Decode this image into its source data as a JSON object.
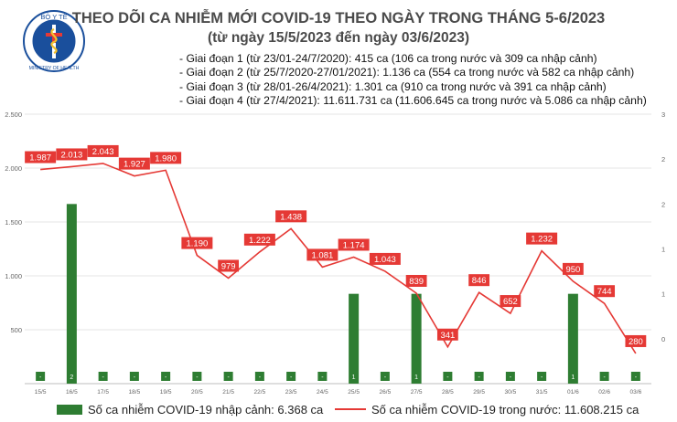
{
  "header": {
    "org_logo": "ministry-of-health-emblem",
    "org_name_top": "BỘ Y TẾ",
    "org_name_bottom": "MINISTRY OF HEALTH",
    "title": "THEO DÕI CA NHIỄM MỚI COVID-19 THEO NGÀY TRONG THÁNG 5-6/2023",
    "subtitle": "(từ ngày 15/5/2023 đến ngày 03/6/2023)"
  },
  "phases": [
    "- Giai đoạn 1 (từ 23/01-24/7/2020): 415 ca (106 ca trong nước và 309 ca nhập cảnh)",
    "- Giai đoạn 2 (từ 25/7/2020-27/01/2021): 1.136 ca (554 ca trong nước và 582 ca nhập cảnh)",
    "- Giai đoạn 3 (từ 28/01-26/4/2021): 1.301 ca (910 ca trong nước và 391 ca nhập cảnh)",
    "- Giai đoạn 4 (từ 27/4/2021): 11.611.731 ca (11.606.645 ca trong nước và 5.086 ca nhập cảnh)"
  ],
  "legend": {
    "imported": "Số ca nhiễm COVID-19 nhập cảnh: 6.368 ca",
    "domestic": "Số ca nhiễm COVID-19 trong nước: 11.608.215 ca"
  },
  "chart_data": {
    "type": "bar+line",
    "categories": [
      "15/5",
      "16/5",
      "17/5",
      "18/5",
      "19/5",
      "20/5",
      "21/5",
      "22/5",
      "23/5",
      "24/5",
      "25/5",
      "26/5",
      "27/5",
      "28/5",
      "29/5",
      "30/5",
      "31/5",
      "01/6",
      "02/6",
      "03/6"
    ],
    "y_left": {
      "range": [
        0,
        2500
      ],
      "ticks": [
        "2.500",
        "2.000",
        "1.500",
        "1.000",
        "500"
      ]
    },
    "y_right": {
      "range": [
        0,
        3
      ],
      "ticks": [
        "3",
        "2",
        "2",
        "1",
        "1",
        "0"
      ]
    },
    "series": [
      {
        "name": "Số ca nhiễm COVID-19 nhập cảnh",
        "type": "bar",
        "axis": "right",
        "color": "#2e7d32",
        "values": [
          0,
          2,
          0,
          0,
          0,
          0,
          0,
          0,
          0,
          0,
          1,
          0,
          1,
          0,
          0,
          0,
          0,
          1,
          0,
          0
        ],
        "labels": [
          "-",
          "2",
          "-",
          "-",
          "-",
          "-",
          "-",
          "-",
          "-",
          "-",
          "1",
          "-",
          "1",
          "-",
          "-",
          "-",
          "-",
          "1",
          "-",
          "-"
        ]
      },
      {
        "name": "Số ca nhiễm COVID-19 trong nước",
        "type": "line",
        "axis": "left",
        "color": "#e53935",
        "values": [
          1987,
          2013,
          2043,
          1927,
          1980,
          1190,
          979,
          1222,
          1438,
          1081,
          1174,
          1043,
          839,
          341,
          846,
          652,
          1232,
          950,
          744,
          280
        ],
        "labels": [
          "1.987",
          "2.013",
          "2.043",
          "1.927",
          "1.980",
          "1.190",
          "979",
          "1.222",
          "1.438",
          "1.081",
          "1.174",
          "1.043",
          "839",
          "341",
          "846",
          "652",
          "1.232",
          "950",
          "744",
          "280"
        ]
      }
    ]
  }
}
